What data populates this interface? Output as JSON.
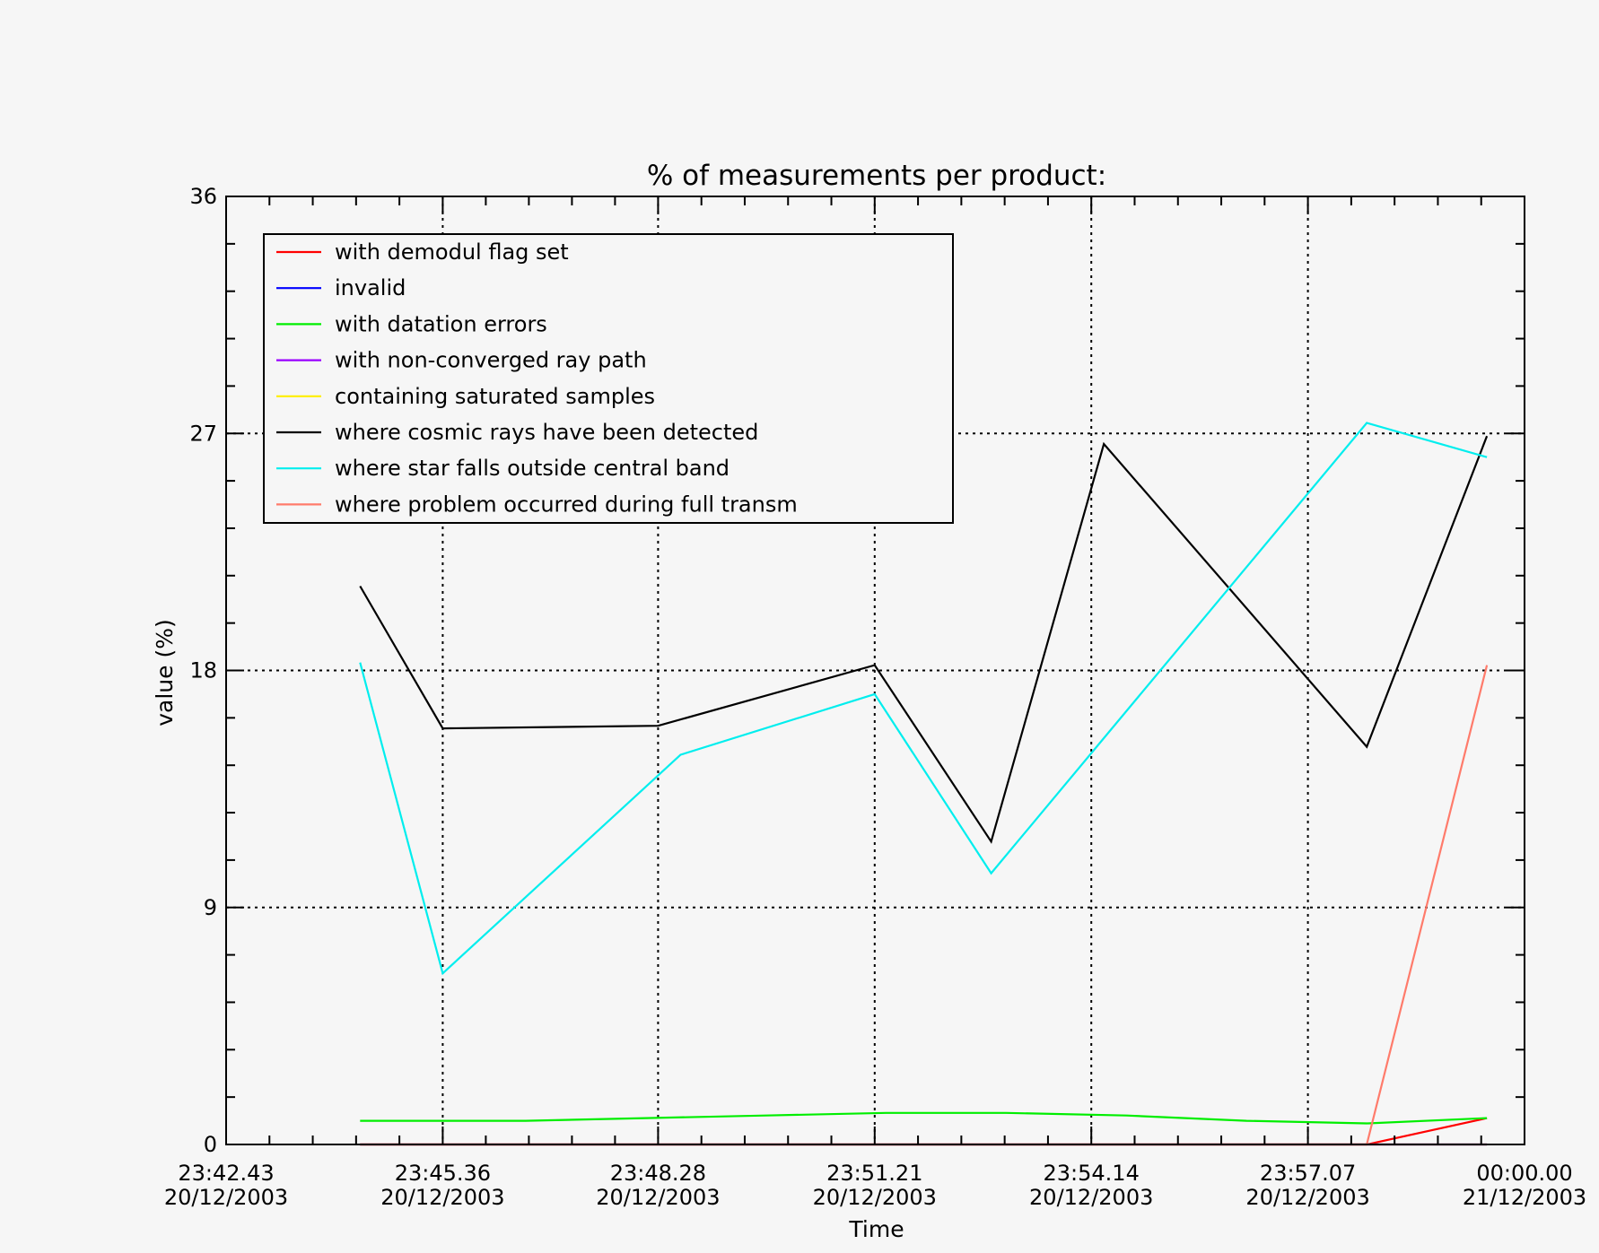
{
  "chart_data": {
    "type": "line",
    "title": "% of measurements per product:",
    "xlabel": "Time",
    "ylabel": "value (%)",
    "ylim": [
      0,
      36
    ],
    "y_ticks": [
      0,
      9,
      18,
      27,
      36
    ],
    "x_tick_labels": [
      {
        "time": "23:42.43",
        "date": "20/12/2003"
      },
      {
        "time": "23:45.36",
        "date": "20/12/2003"
      },
      {
        "time": "23:48.28",
        "date": "20/12/2003"
      },
      {
        "time": "23:51.21",
        "date": "20/12/2003"
      },
      {
        "time": "23:54.14",
        "date": "20/12/2003"
      },
      {
        "time": "23:57.07",
        "date": "20/12/2003"
      },
      {
        "time": "00:00.00",
        "date": "21/12/2003"
      }
    ],
    "x_axis_start": "2003-12-20T23:42:43",
    "x_axis_end": "2003-12-21T00:00:00",
    "grid": true,
    "legend_position": "top-left",
    "x": [
      "23:44:30",
      "23:45:06",
      "23:46:42",
      "23:48:18",
      "23:49:54",
      "23:51:30",
      "23:53:06",
      "23:54:42",
      "23:56:18",
      "23:57:54",
      "23:59:30"
    ],
    "x_dates": [
      "20/12/2003",
      "20/12/2003",
      "20/12/2003",
      "20/12/2003",
      "20/12/2003",
      "20/12/2003",
      "20/12/2003",
      "20/12/2003",
      "20/12/2003",
      "20/12/2003",
      "20/12/2003"
    ],
    "series": [
      {
        "name": "with demodul flag set",
        "color": "#ff0000",
        "x": [
          "23:44:30",
          "23:57:54",
          "23:59:30"
        ],
        "values": [
          0,
          0,
          1
        ]
      },
      {
        "name": "invalid",
        "color": "#0000ff",
        "x": [
          "23:44:30",
          "23:59:30"
        ],
        "values": [
          0,
          0
        ]
      },
      {
        "name": "with datation errors",
        "color": "#00ee00",
        "x": [
          "23:44:30",
          "23:46:42",
          "23:48:18",
          "23:49:54",
          "23:51:30",
          "23:53:06",
          "23:54:42",
          "23:56:18",
          "23:57:54",
          "23:59:30"
        ],
        "values": [
          0.9,
          0.9,
          1.0,
          1.1,
          1.2,
          1.2,
          1.1,
          0.9,
          0.8,
          1.0
        ]
      },
      {
        "name": "with non-converged ray path",
        "color": "#9900ff",
        "x": [
          "23:44:30",
          "23:59:30"
        ],
        "values": [
          0,
          0
        ]
      },
      {
        "name": "containing saturated samples",
        "color": "#ffee00",
        "x": [
          "23:44:30",
          "23:59:30"
        ],
        "values": [
          0,
          0
        ]
      },
      {
        "name": "where cosmic rays have been detected",
        "color": "#000000",
        "x": [
          "23:44:30",
          "23:45:36",
          "23:48:28",
          "23:51:21",
          "23:52:54",
          "23:54:24",
          "23:57:54",
          "23:59:30"
        ],
        "values": [
          21.2,
          15.8,
          15.9,
          18.2,
          11.5,
          26.6,
          15.1,
          26.9
        ]
      },
      {
        "name": "where star falls outside central band",
        "color": "#00eeee",
        "x": [
          "23:44:30",
          "23:45:36",
          "23:48:46",
          "23:51:21",
          "23:52:54",
          "23:57:54",
          "23:59:30"
        ],
        "values": [
          18.3,
          6.5,
          14.8,
          17.1,
          10.3,
          27.4,
          26.1
        ]
      },
      {
        "name": "where problem occurred during full transm",
        "color": "#ff7b6b",
        "x": [
          "23:44:30",
          "23:57:54",
          "23:59:30"
        ],
        "values": [
          0,
          0,
          18.2
        ]
      }
    ]
  }
}
